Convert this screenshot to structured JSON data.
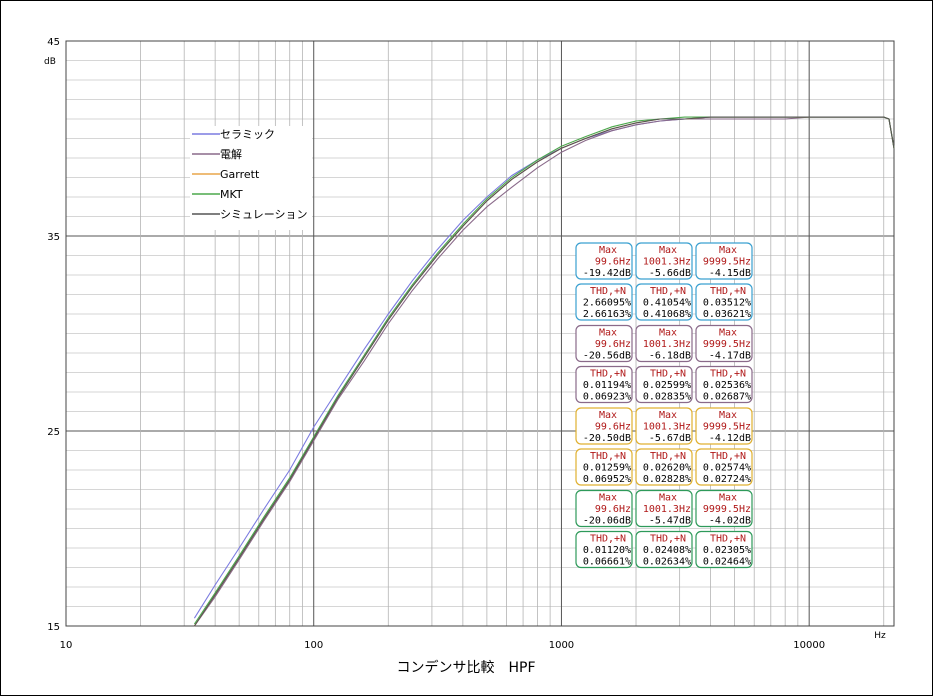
{
  "chart_data": {
    "type": "line",
    "title": "コンデンサ比較　HPF",
    "xlabel": "",
    "ylabel": "",
    "x_unit": "Hz",
    "y_unit": "dB",
    "xscale": "log",
    "xlim": [
      10,
      22000
    ],
    "ylim": [
      15,
      45
    ],
    "x_ticks": [
      "10",
      "100",
      "1000",
      "10000"
    ],
    "y_ticks": [
      "45",
      "35",
      "25",
      "15"
    ],
    "grid": true,
    "legend_position": "top-left",
    "series": [
      {
        "name": "セラミック",
        "color": "#7b7be0",
        "x": [
          33,
          40,
          50,
          63,
          80,
          100,
          125,
          160,
          200,
          250,
          315,
          400,
          500,
          630,
          800,
          1000,
          1250,
          1600,
          2000,
          2500,
          3150,
          4000,
          5000,
          6300,
          8000,
          10000,
          12500,
          16000,
          20000,
          21000,
          22000
        ],
        "y": [
          15.4,
          17.1,
          19.0,
          21.0,
          23.0,
          25.2,
          27.1,
          29.2,
          31.0,
          32.7,
          34.3,
          35.8,
          37.0,
          38.1,
          38.9,
          39.5,
          40.0,
          40.4,
          40.7,
          40.9,
          41.0,
          41.1,
          41.1,
          41.1,
          41.1,
          41.1,
          41.1,
          41.1,
          41.1,
          41.0,
          39.5
        ]
      },
      {
        "name": "電解",
        "color": "#8a6a8a",
        "x": [
          33,
          40,
          50,
          63,
          80,
          100,
          125,
          160,
          200,
          250,
          315,
          400,
          500,
          630,
          800,
          1000,
          1250,
          1600,
          2000,
          2500,
          3150,
          4000,
          5000,
          6300,
          8000,
          10000,
          12500,
          16000,
          20000,
          21000,
          22000
        ],
        "y": [
          15.0,
          16.5,
          18.4,
          20.4,
          22.4,
          24.5,
          26.6,
          28.6,
          30.5,
          32.2,
          33.8,
          35.3,
          36.5,
          37.5,
          38.5,
          39.3,
          39.9,
          40.4,
          40.7,
          40.9,
          41.0,
          41.0,
          41.0,
          41.0,
          41.0,
          41.1,
          41.1,
          41.1,
          41.1,
          41.0,
          39.5
        ]
      },
      {
        "name": "Garrett",
        "color": "#e8a64a",
        "x": [
          33,
          40,
          50,
          63,
          80,
          100,
          125,
          160,
          200,
          250,
          315,
          400,
          500,
          630,
          800,
          1000,
          1250,
          1600,
          2000,
          2500,
          3150,
          4000,
          5000,
          6300,
          8000,
          10000,
          12500,
          16000,
          20000,
          21000,
          22000
        ],
        "y": [
          15.0,
          16.6,
          18.5,
          20.5,
          22.5,
          24.6,
          26.7,
          28.8,
          30.7,
          32.4,
          34.0,
          35.5,
          36.8,
          37.9,
          38.8,
          39.5,
          40.0,
          40.5,
          40.8,
          41.0,
          41.0,
          41.1,
          41.1,
          41.1,
          41.1,
          41.1,
          41.1,
          41.1,
          41.1,
          41.0,
          39.5
        ]
      },
      {
        "name": "MKT",
        "color": "#4ca84c",
        "x": [
          33,
          40,
          50,
          63,
          80,
          100,
          125,
          160,
          200,
          250,
          315,
          400,
          500,
          630,
          800,
          1000,
          1250,
          1600,
          2000,
          2500,
          3150,
          4000,
          5000,
          6300,
          8000,
          10000,
          12500,
          16000,
          20000,
          21000,
          22000
        ],
        "y": [
          15.1,
          16.7,
          18.6,
          20.6,
          22.6,
          24.7,
          26.8,
          28.9,
          30.8,
          32.5,
          34.1,
          35.6,
          36.9,
          38.0,
          38.9,
          39.6,
          40.1,
          40.6,
          40.9,
          41.0,
          41.1,
          41.1,
          41.1,
          41.1,
          41.1,
          41.1,
          41.1,
          41.1,
          41.1,
          41.0,
          39.5
        ]
      },
      {
        "name": "シミュレーション",
        "color": "#555555",
        "x": [
          33,
          40,
          50,
          63,
          80,
          100,
          125,
          160,
          200,
          250,
          315,
          400,
          500,
          630,
          800,
          1000,
          1250,
          1600,
          2000,
          2500,
          3150,
          4000,
          5000,
          6300,
          8000,
          10000,
          12500,
          16000,
          20000,
          21000,
          22000
        ],
        "y": [
          15.0,
          16.6,
          18.5,
          20.5,
          22.5,
          24.6,
          26.7,
          28.8,
          30.7,
          32.4,
          34.0,
          35.5,
          36.8,
          37.9,
          38.8,
          39.5,
          40.0,
          40.5,
          40.8,
          41.0,
          41.0,
          41.1,
          41.1,
          41.1,
          41.1,
          41.1,
          41.1,
          41.1,
          41.1,
          41.0,
          39.5
        ]
      }
    ],
    "annotation_groups": [
      {
        "color": "#3aa0d0",
        "max": [
          [
            "Max",
            "99.6Hz",
            "-19.42dB"
          ],
          [
            "Max",
            "1001.3Hz",
            "-5.66dB"
          ],
          [
            "Max",
            "9999.5Hz",
            "-4.15dB"
          ]
        ],
        "thd": [
          [
            "THD,+N",
            "2.66095%",
            "2.66163%"
          ],
          [
            "THD,+N",
            "0.41054%",
            "0.41068%"
          ],
          [
            "THD,+N",
            "0.03512%",
            "0.03621%"
          ]
        ]
      },
      {
        "color": "#8a6a8a",
        "max": [
          [
            "Max",
            "99.6Hz",
            "-20.56dB"
          ],
          [
            "Max",
            "1001.3Hz",
            "-6.18dB"
          ],
          [
            "Max",
            "9999.5Hz",
            "-4.17dB"
          ]
        ],
        "thd": [
          [
            "THD,+N",
            "0.01194%",
            "0.06923%"
          ],
          [
            "THD,+N",
            "0.02599%",
            "0.02835%"
          ],
          [
            "THD,+N",
            "0.02536%",
            "0.02687%"
          ]
        ]
      },
      {
        "color": "#e0b030",
        "max": [
          [
            "Max",
            "99.6Hz",
            "-20.50dB"
          ],
          [
            "Max",
            "1001.3Hz",
            "-5.67dB"
          ],
          [
            "Max",
            "9999.5Hz",
            "-4.12dB"
          ]
        ],
        "thd": [
          [
            "THD,+N",
            "0.01259%",
            "0.06952%"
          ],
          [
            "THD,+N",
            "0.02620%",
            "0.02828%"
          ],
          [
            "THD,+N",
            "0.02574%",
            "0.02724%"
          ]
        ]
      },
      {
        "color": "#2e9a5a",
        "max": [
          [
            "Max",
            "99.6Hz",
            "-20.06dB"
          ],
          [
            "Max",
            "1001.3Hz",
            "-5.47dB"
          ],
          [
            "Max",
            "9999.5Hz",
            "-4.02dB"
          ]
        ],
        "thd": [
          [
            "THD,+N",
            "0.01120%",
            "0.06661%"
          ],
          [
            "THD,+N",
            "0.02408%",
            "0.02634%"
          ],
          [
            "THD,+N",
            "0.02305%",
            "0.02464%"
          ]
        ]
      }
    ],
    "label_color": "#b01818"
  }
}
